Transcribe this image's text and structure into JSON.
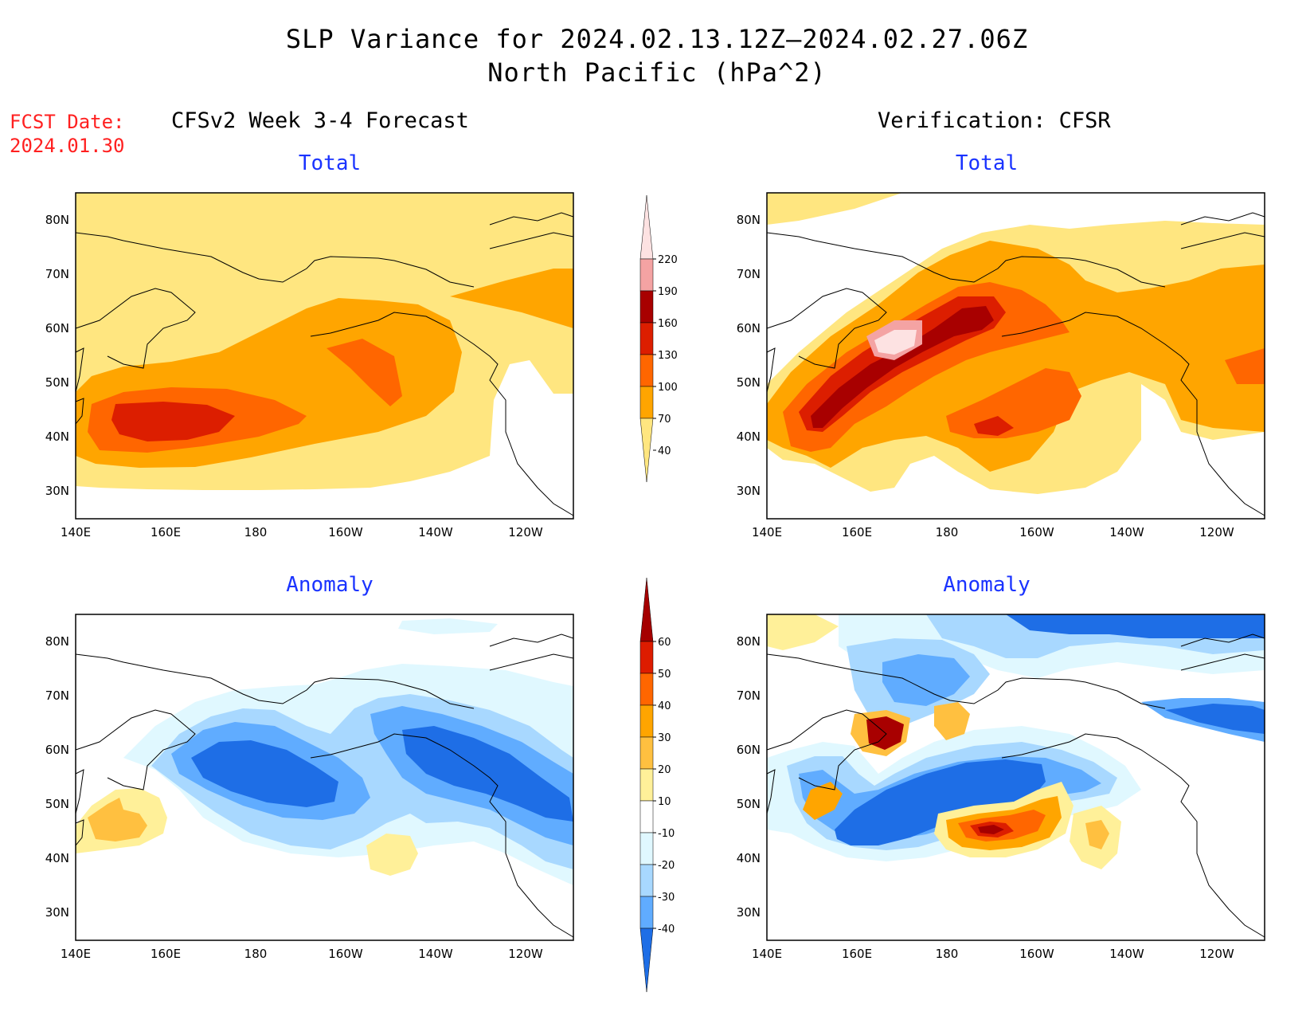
{
  "header": {
    "title_line1": "SLP Variance for 2024.02.13.12Z–2024.02.27.06Z",
    "title_line2": "North Pacific (hPa^2)"
  },
  "forecast_date": {
    "label": "FCST Date:",
    "value": "2024.01.30"
  },
  "columns": {
    "left": "CFSv2 Week 3-4 Forecast",
    "right": "Verification: CFSR"
  },
  "panels": [
    {
      "column": "left",
      "row": "top",
      "subtitle": "Total"
    },
    {
      "column": "right",
      "row": "top",
      "subtitle": "Total"
    },
    {
      "column": "left",
      "row": "bottom",
      "subtitle": "Anomaly"
    },
    {
      "column": "right",
      "row": "bottom",
      "subtitle": "Anomaly"
    }
  ],
  "axes": {
    "lat_labels": [
      "80N",
      "70N",
      "60N",
      "50N",
      "40N",
      "30N"
    ],
    "lon_labels": [
      "140E",
      "160E",
      "180",
      "160W",
      "140W",
      "120W"
    ]
  },
  "colorbars": {
    "total": {
      "levels": [
        "220",
        "190",
        "160",
        "130",
        "100",
        "70",
        "40"
      ],
      "colors": [
        "#fde2e2",
        "#f4a3a3",
        "#a80000",
        "#dc1e00",
        "#ff6600",
        "#ffa500",
        "#ffe680"
      ]
    },
    "anomaly": {
      "levels": [
        "60",
        "50",
        "40",
        "30",
        "20",
        "10",
        "-10",
        "-20",
        "-30",
        "-40"
      ],
      "colors": [
        "#a50000",
        "#dd1c00",
        "#ff6600",
        "#ffa500",
        "#ffc040",
        "#fff099",
        "#ffffff",
        "#e0f8ff",
        "#a8d8ff",
        "#60acff",
        "#1e6ee6"
      ]
    }
  },
  "colors": {
    "title_text": "#000000",
    "forecast_date_text": "#ff2020",
    "subtitle_text": "#1a33ff"
  }
}
